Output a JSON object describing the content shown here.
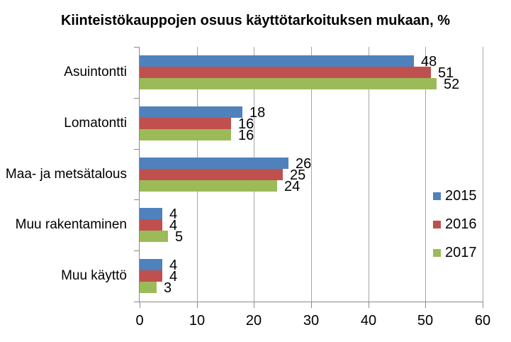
{
  "title": "Kiinteistökauppojen osuus käyttötarkoituksen mukaan, %",
  "chart_data": {
    "type": "bar",
    "orientation": "horizontal",
    "title": "Kiinteistökauppojen osuus käyttötarkoituksen mukaan, %",
    "categories": [
      "Asuintontti",
      "Lomatontti",
      "Maa- ja metsätalous",
      "Muu rakentaminen",
      "Muu käyttö"
    ],
    "series": [
      {
        "name": "2015",
        "color": "#4F81BD",
        "values": [
          48,
          18,
          26,
          4,
          4
        ]
      },
      {
        "name": "2016",
        "color": "#C0504D",
        "values": [
          51,
          16,
          25,
          4,
          4
        ]
      },
      {
        "name": "2017",
        "color": "#9BBB59",
        "values": [
          52,
          16,
          24,
          5,
          3
        ]
      }
    ],
    "xlabel": "",
    "ylabel": "",
    "xlim": [
      0,
      60
    ],
    "x_ticks": [
      0,
      10,
      20,
      30,
      40,
      50,
      60
    ],
    "grid": "vertical-major",
    "legend_position": "right-inside",
    "data_labels": "outside-end",
    "colors": {
      "gridline": "#A6A6A6",
      "axis": "#8A8A8A",
      "text": "#000000",
      "background": "#FFFFFF"
    }
  }
}
